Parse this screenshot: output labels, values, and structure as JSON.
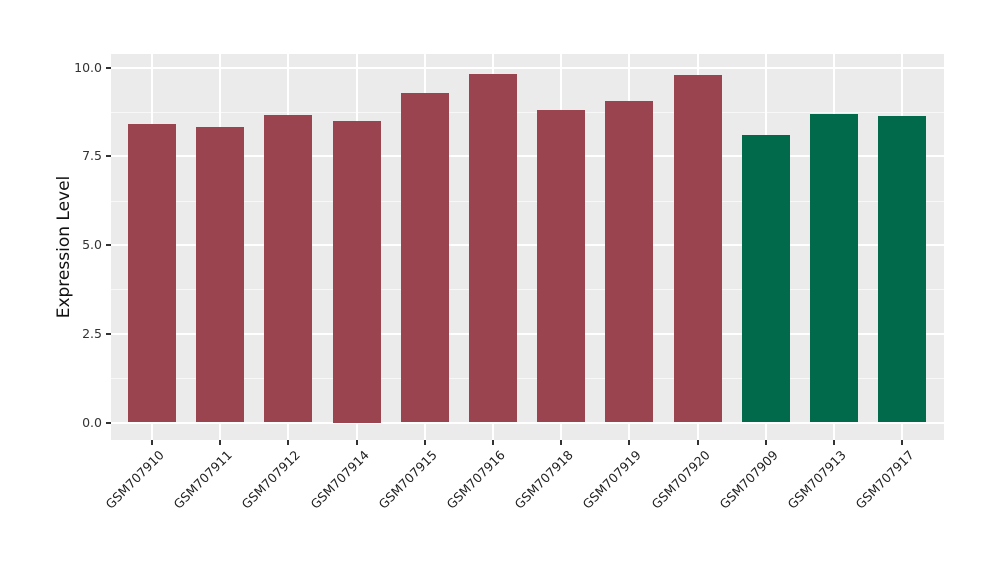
{
  "figure": {
    "background": "#FFFFFF",
    "panel_background": "#EBEBEB",
    "grid_major_color": "#FFFFFF",
    "grid_minor_color": "#FFFFFF",
    "tick_color": "#333333",
    "axis_text_color": "#222222"
  },
  "chart_data": {
    "type": "bar",
    "title": "",
    "xlabel": "",
    "ylabel": "Expression Level",
    "categories": [
      "GSM707910",
      "GSM707911",
      "GSM707912",
      "GSM707914",
      "GSM707915",
      "GSM707916",
      "GSM707918",
      "GSM707919",
      "GSM707920",
      "GSM707909",
      "GSM707913",
      "GSM707917"
    ],
    "values": [
      8.4,
      8.33,
      8.67,
      8.5,
      9.27,
      9.83,
      8.8,
      9.06,
      9.78,
      8.1,
      8.7,
      8.63
    ],
    "bar_colors": [
      "#9A4450",
      "#9A4450",
      "#9A4450",
      "#9A4450",
      "#9A4450",
      "#9A4450",
      "#9A4450",
      "#9A4450",
      "#9A4450",
      "#006A4A",
      "#006A4A",
      "#006A4A"
    ],
    "group_colors": {
      "maroon": "#9A4450",
      "green": "#006A4A"
    },
    "ylim": [
      0,
      10.37
    ],
    "yticks": [
      0.0,
      2.5,
      5.0,
      7.5,
      10.0
    ],
    "ytick_labels": [
      "0.0",
      "2.5",
      "5.0",
      "7.5",
      "10.0"
    ],
    "yticks_minor": [
      1.25,
      3.75,
      6.25,
      8.75
    ],
    "grid": true,
    "legend_position": "none",
    "x_label_angle": 45
  }
}
